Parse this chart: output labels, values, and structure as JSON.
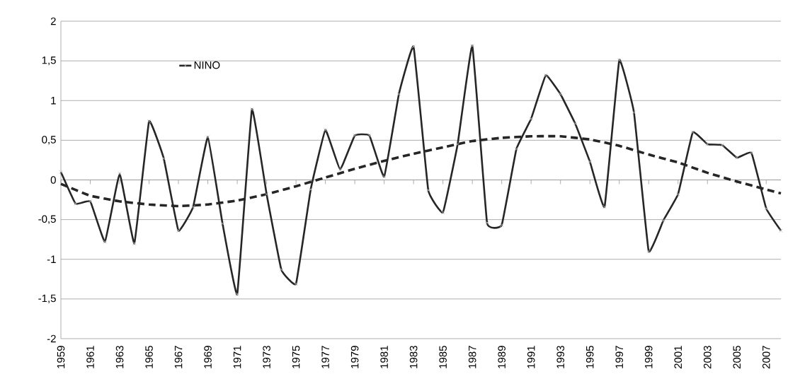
{
  "chart_data": {
    "type": "line",
    "x": [
      1959,
      1960,
      1961,
      1962,
      1963,
      1964,
      1965,
      1966,
      1967,
      1968,
      1969,
      1970,
      1971,
      1972,
      1973,
      1974,
      1975,
      1976,
      1977,
      1978,
      1979,
      1980,
      1981,
      1982,
      1983,
      1984,
      1985,
      1986,
      1987,
      1988,
      1989,
      1990,
      1991,
      1992,
      1993,
      1994,
      1995,
      1996,
      1997,
      1998,
      1999,
      2000,
      2001,
      2002,
      2003,
      2004,
      2005,
      2006,
      2007,
      2008
    ],
    "series": [
      {
        "name": "NINO",
        "color": "#262626",
        "marker": "cross",
        "line_style": "solid",
        "values": [
          0.1,
          -0.3,
          -0.27,
          -0.78,
          0.08,
          -0.8,
          0.74,
          0.27,
          -0.64,
          -0.34,
          0.54,
          -0.55,
          -1.44,
          0.89,
          -0.18,
          -1.13,
          -1.31,
          -0.12,
          0.63,
          0.13,
          0.56,
          0.56,
          0.04,
          1.08,
          1.68,
          -0.13,
          -0.41,
          0.45,
          1.69,
          -0.54,
          -0.57,
          0.39,
          0.77,
          1.32,
          1.08,
          0.71,
          0.23,
          -0.34,
          1.51,
          0.85,
          -0.9,
          -0.51,
          -0.18,
          0.6,
          0.45,
          0.44,
          0.28,
          0.34,
          -0.36,
          -0.64
        ]
      },
      {
        "type": "line",
        "color": "#262626",
        "marker": "none",
        "line_style": "dashed",
        "x": [
          1959,
          1961,
          1963,
          1965,
          1967,
          1969,
          1971,
          1973,
          1975,
          1977,
          1979,
          1981,
          1983,
          1985,
          1987,
          1989,
          1991,
          1993,
          1995,
          1997,
          1999,
          2001,
          2003,
          2005,
          2007,
          2008
        ],
        "values": [
          -0.05,
          -0.2,
          -0.27,
          -0.31,
          -0.33,
          -0.31,
          -0.26,
          -0.18,
          -0.08,
          0.03,
          0.14,
          0.24,
          0.33,
          0.41,
          0.49,
          0.53,
          0.55,
          0.55,
          0.51,
          0.43,
          0.32,
          0.22,
          0.09,
          -0.02,
          -0.12,
          -0.17
        ]
      }
    ],
    "xlim": [
      1959,
      2008
    ],
    "xticks": [
      1959,
      1961,
      1963,
      1965,
      1967,
      1969,
      1971,
      1973,
      1975,
      1977,
      1979,
      1981,
      1983,
      1985,
      1987,
      1989,
      1991,
      1993,
      1995,
      1997,
      1999,
      2001,
      2003,
      2005,
      2007
    ],
    "ylim": [
      -2,
      2
    ],
    "yticks": [
      -2,
      {
        "value": -1.5,
        "label": "-1,5"
      },
      -1,
      {
        "value": -0.5,
        "label": "-0,5"
      },
      0,
      {
        "value": 0.5,
        "label": "0,5"
      },
      1,
      {
        "value": 1.5,
        "label": "1,5"
      },
      2
    ],
    "grid": "y",
    "legend": "top left"
  }
}
